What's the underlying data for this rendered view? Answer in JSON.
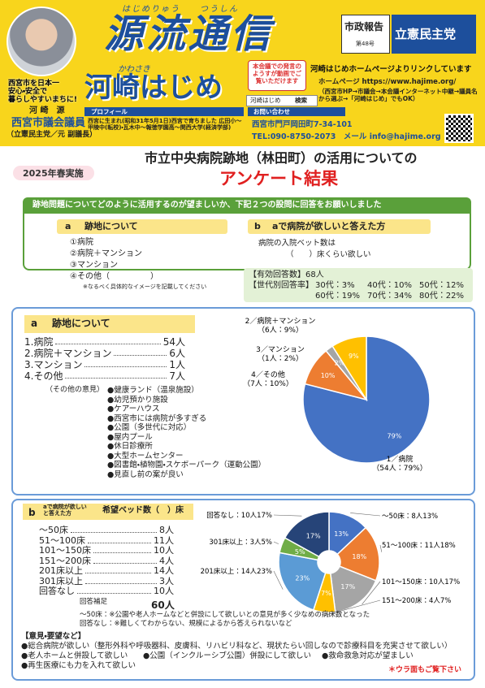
{
  "header": {
    "ruby_title": "はじめりゅう　　つうしん",
    "title": "源流通信",
    "ruby_name": "かわさき",
    "name": "河崎はじめ",
    "photo_caption": [
      "西宮市を日本一",
      "安心・安全で",
      "暮らしやすいまちに!"
    ],
    "person_name": "河 崎　源",
    "position": "西宮市議会議員",
    "affiliation": "（立憲民主党／元 副議長）",
    "report_label": "市政報告",
    "issue": "第48号",
    "party": "立憲民主党",
    "video_note": "本会議での発言のようすが動画でご覧いただけます",
    "link_note": "河崎はじめホームページよりリンクしています",
    "homepage": "ホームページ https://www.hajime.org/",
    "hp_nav": "（西宮市HP→市議会→本会議インターネット中継→議員名から選ぶ→「河崎はじめ」でもOK）",
    "search_box": "河崎はじめ",
    "search_btn": "検索",
    "profile_label": "プロフィール",
    "profile": "西宮に生まれ(昭和31年5月1日)西宮で育ちました 広田小～甲陵中(転校)・瓦木中～報徳学園高～関西大学(経済学部)",
    "contact_label": "お問い合わせ",
    "address": "西宮市門戸岡田町7-34-101",
    "contact": "TEL:090-8750-2073　メール info@hajime.org"
  },
  "survey": {
    "year": "2025年春実施",
    "title_1": "市立中央病院跡地（林田町）の活用についての",
    "title_2": "アンケート結果",
    "instruction": "跡地問題についてどのように活用するのが望ましいか、下記２つの設問に回答をお願いしました",
    "q_a": {
      "letter": "a",
      "title": "跡地について",
      "options": [
        "①病院",
        "②病院＋マンション",
        "③マンション",
        "④その他（　　　　　）"
      ],
      "note": "※なるべく具体的なイメージを記載してください"
    },
    "q_b": {
      "letter": "b",
      "title": "aで病院が欲しいと答えた方",
      "text": "病院の入院ベット数は",
      "blank": "（　　）床くらい欲しい"
    },
    "valid": "【有効回答数】68人",
    "age_label": "【世代別回答率】",
    "ages": [
      "30代：3%",
      "40代：10%",
      "50代：12%",
      "60代：19%",
      "70代：34%",
      "80代：22%"
    ]
  },
  "result_a": {
    "letter": "a",
    "title": "跡地について",
    "rows": [
      [
        "1.病院",
        "54人"
      ],
      [
        "2.病院＋マンション",
        "6人"
      ],
      [
        "3.マンション",
        "1人"
      ],
      [
        "4.その他",
        "7人"
      ]
    ],
    "opinion_label": "（その他の意見）",
    "opinions": [
      "●健康ランド（温泉施設）",
      "●幼児預かり施設",
      "●ケアーハウス",
      "●西宮市には病院が多すぎる",
      "●公園（多世代に対応）",
      "●屋内プール",
      "●休日診療所",
      "●大型ホームセンター",
      "●図書館・植物園・スケボーパーク（運動公園）",
      "●見直し前の案が良い"
    ],
    "chart": {
      "type": "pie",
      "values": [
        79,
        10,
        2,
        9
      ],
      "value_labels": [
        "79%",
        "10%",
        "2%",
        "9%"
      ],
      "colors": [
        "#4472c4",
        "#ed7d31",
        "#a5a5a5",
        "#ffc000"
      ],
      "labels": [
        [
          "1／病院",
          "（54人：79%）"
        ],
        [
          "4／その他",
          "（7人：10%）"
        ],
        [
          "3／マンション",
          "（1人：2%）"
        ],
        [
          "2／病院＋マンション",
          "（6人：9%）"
        ]
      ]
    }
  },
  "result_b": {
    "letter": "b",
    "question": "aで病院が欲しいと答えた方",
    "subtitle": "希望ベッド数（　）床",
    "rows": [
      [
        "～50床",
        "8人"
      ],
      [
        "51～100床",
        "11人"
      ],
      [
        "101～150床",
        "10人"
      ],
      [
        "151～200床",
        "4人"
      ],
      [
        "201床以上",
        "14人"
      ],
      [
        "301床以上",
        "3人"
      ],
      [
        "回答なし",
        "10人"
      ]
    ],
    "total_label": "回答補足",
    "total": "60人",
    "notes": [
      "～50床：※公園や老人ホームなどと併設にして欲しいとの意見が多く少なめの病床数となった",
      "回答なし：※難しくてわからない、規模によるから答えられないなど"
    ],
    "chart": {
      "type": "donut",
      "values": [
        13,
        18,
        17,
        7,
        23,
        5,
        17
      ],
      "value_labels": [
        "13%",
        "18%",
        "17%",
        "7%",
        "23%",
        "5%",
        "17%"
      ],
      "colors": [
        "#4472c4",
        "#ed7d31",
        "#a5a5a5",
        "#ffc000",
        "#5b9bd5",
        "#70ad47",
        "#264478"
      ],
      "labels": [
        "～50床：8人13%",
        "51～100床：11人18%",
        "101～150床：10人17%",
        "151～200床：4人7%",
        "201床以上：14人23%",
        "301床以上：3人5%",
        "回答なし：10人17%"
      ]
    }
  },
  "comments": {
    "title": "【意見・要望など】",
    "items": [
      "●総合病院が欲しい（整形外科や呼吸器科、皮膚科、リハビリ科など、現状たらい回しなので診療科目を充実させて欲しい）",
      "●老人ホームと併設して欲しい",
      "●公園（インクルーシブ公園）併設にして欲しい",
      "●救命救急対応が望ましい",
      "●再生医療にも力を入れて欲しい"
    ],
    "footer": "＊ウラ面もご覧下さい"
  }
}
